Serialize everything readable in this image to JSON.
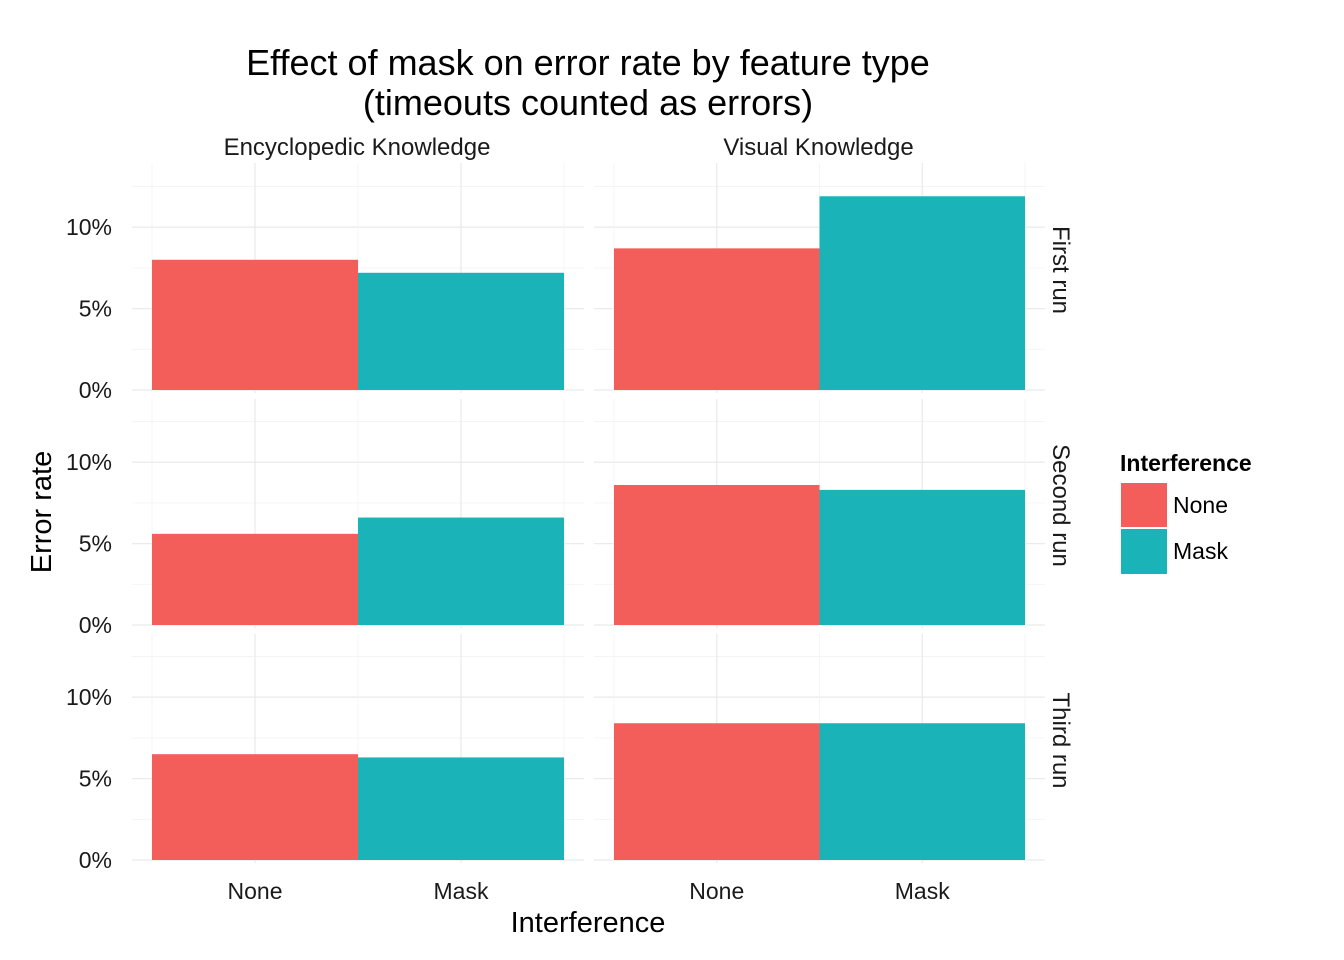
{
  "chart_data": {
    "type": "bar",
    "title_lines": [
      "Effect of mask on error rate by feature type",
      "(timeouts counted as errors)"
    ],
    "xlabel": "Interference",
    "ylabel": "Error rate",
    "categories": [
      "None",
      "Mask"
    ],
    "columns": [
      "Encyclopedic Knowledge",
      "Visual Knowledge"
    ],
    "rows": [
      "First run",
      "Second run",
      "Third run"
    ],
    "y_ticks": [
      {
        "value": 0,
        "label": "0%"
      },
      {
        "value": 5,
        "label": "5%"
      },
      {
        "value": 10,
        "label": "10%"
      }
    ],
    "ylim": [
      0,
      14
    ],
    "grid": true,
    "legend": {
      "title": "Interference",
      "placement": "right",
      "entries": [
        {
          "label": "None",
          "color": "#F35E5A"
        },
        {
          "label": "Mask",
          "color": "#19B3B8"
        }
      ]
    },
    "panels": [
      {
        "row": "First run",
        "column": "Encyclopedic Knowledge",
        "values": [
          8.0,
          7.2
        ]
      },
      {
        "row": "First run",
        "column": "Visual Knowledge",
        "values": [
          8.7,
          11.9
        ]
      },
      {
        "row": "Second run",
        "column": "Encyclopedic Knowledge",
        "values": [
          5.6,
          6.6
        ]
      },
      {
        "row": "Second run",
        "column": "Visual Knowledge",
        "values": [
          8.6,
          8.3
        ]
      },
      {
        "row": "Third run",
        "column": "Encyclopedic Knowledge",
        "values": [
          6.5,
          6.3
        ]
      },
      {
        "row": "Third run",
        "column": "Visual Knowledge",
        "values": [
          8.4,
          8.4
        ]
      }
    ]
  }
}
